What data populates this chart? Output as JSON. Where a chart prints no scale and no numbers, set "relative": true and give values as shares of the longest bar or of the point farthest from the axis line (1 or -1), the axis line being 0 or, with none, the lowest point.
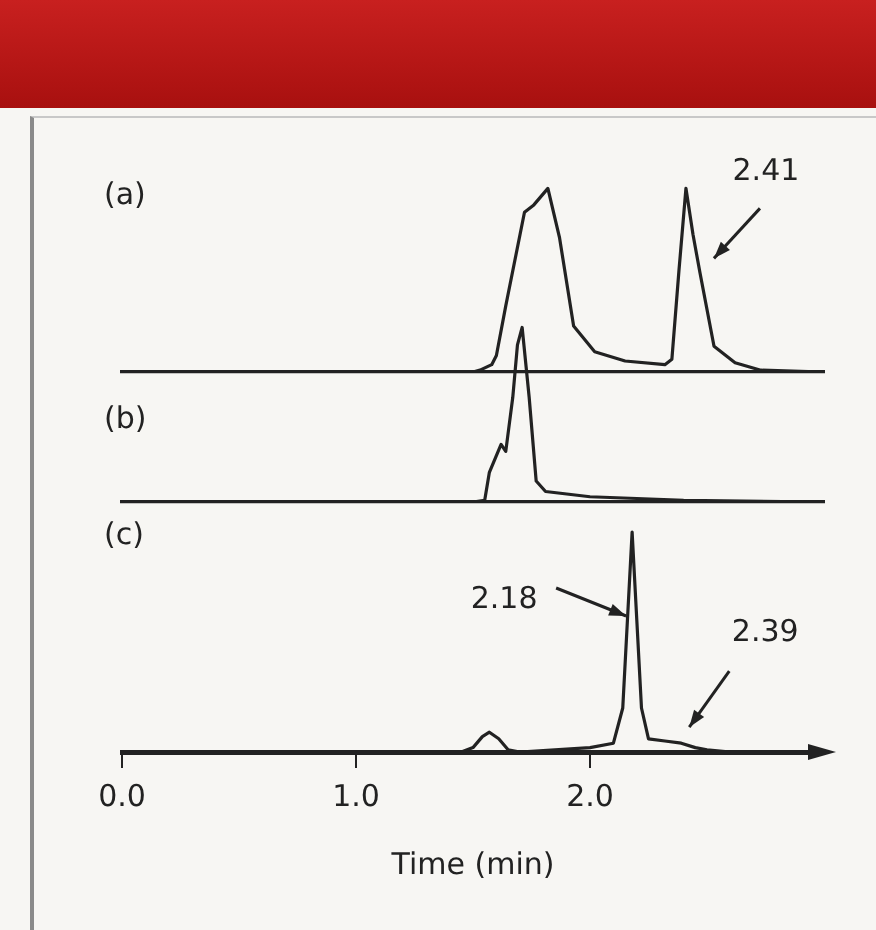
{
  "chart_data": [
    {
      "type": "line",
      "title": "(a)",
      "relative": true,
      "xlim": [
        0,
        3.0
      ],
      "tick_labels": false,
      "grid": false,
      "legend": false,
      "marker": "none",
      "annotations": [
        {
          "text": "2.41",
          "x": 2.41,
          "y": 1.0
        }
      ],
      "series": [
        {
          "color": "#222222",
          "x": [
            0,
            1.5,
            1.53,
            1.58,
            1.6,
            1.64,
            1.72,
            1.76,
            1.82,
            1.87,
            1.93,
            2.02,
            2.15,
            2.32,
            2.35,
            2.38,
            2.41,
            2.44,
            2.47,
            2.53,
            2.62,
            2.73,
            3.0
          ],
          "values": [
            0,
            0,
            0.01,
            0.04,
            0.09,
            0.36,
            0.87,
            0.91,
            1.0,
            0.73,
            0.25,
            0.11,
            0.06,
            0.04,
            0.07,
            0.55,
            1.0,
            0.75,
            0.54,
            0.14,
            0.05,
            0.01,
            0
          ]
        }
      ]
    },
    {
      "type": "line",
      "title": "(b)",
      "relative": true,
      "xlim": [
        0,
        3.0
      ],
      "tick_labels": false,
      "grid": false,
      "legend": false,
      "marker": "none",
      "series": [
        {
          "color": "#222222",
          "x": [
            0,
            1.5,
            1.55,
            1.57,
            1.62,
            1.64,
            1.67,
            1.69,
            1.71,
            1.74,
            1.77,
            1.81,
            2.0,
            2.4,
            3.0
          ],
          "values": [
            0,
            0,
            0.01,
            0.17,
            0.33,
            0.29,
            0.6,
            0.9,
            1.0,
            0.6,
            0.12,
            0.06,
            0.03,
            0.01,
            0
          ]
        }
      ]
    },
    {
      "type": "line",
      "title": "(c)",
      "relative": true,
      "xlim": [
        0,
        3.0
      ],
      "xticks": [
        {
          "value": 0,
          "label": "0.0"
        },
        {
          "value": 1,
          "label": "1.0"
        },
        {
          "value": 2,
          "label": "2.0"
        }
      ],
      "xlabel": "Time (min)",
      "tick_labels": "x",
      "grid": false,
      "legend": false,
      "marker": "none",
      "annotations": [
        {
          "text": "2.18",
          "x": 2.18,
          "y": 0.6
        },
        {
          "text": "2.39",
          "x": 2.39,
          "y": 0.04
        }
      ],
      "series": [
        {
          "color": "#222222",
          "x": [
            0,
            1.45,
            1.5,
            1.54,
            1.57,
            1.61,
            1.65,
            1.7,
            2.0,
            2.1,
            2.14,
            2.16,
            2.18,
            2.2,
            2.22,
            2.25,
            2.32,
            2.39,
            2.45,
            2.5,
            2.6,
            3.0
          ],
          "values": [
            0,
            0,
            0.02,
            0.07,
            0.09,
            0.06,
            0.01,
            0,
            0.02,
            0.04,
            0.2,
            0.6,
            1.0,
            0.6,
            0.2,
            0.06,
            0.05,
            0.04,
            0.02,
            0.01,
            0,
            0
          ]
        }
      ]
    }
  ]
}
